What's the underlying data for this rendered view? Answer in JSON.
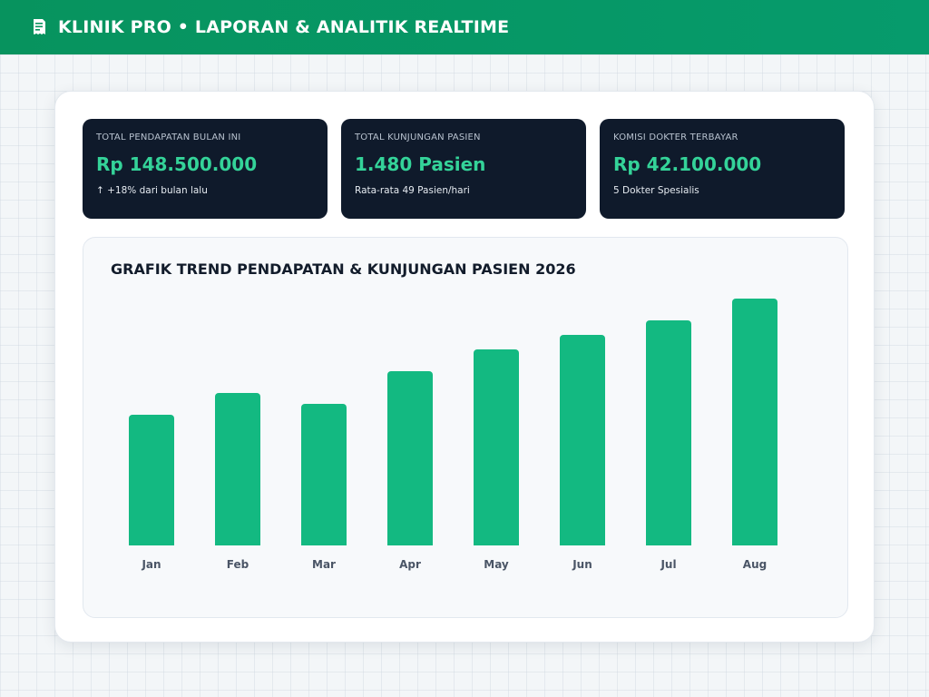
{
  "header": {
    "logo_icon": "receipt-icon",
    "title": "KLINIK PRO • LAPORAN & ANALITIK REALTIME"
  },
  "stats": [
    {
      "label": "TOTAL PENDAPATAN BULAN INI",
      "value": "Rp 148.500.000",
      "note": "↑ +18% dari bulan lalu"
    },
    {
      "label": "TOTAL KUNJUNGAN PASIEN",
      "value": "1.480 Pasien",
      "note": "Rata-rata 49 Pasien/hari"
    },
    {
      "label": "KOMISI DOKTER TERBAYAR",
      "value": "Rp 42.100.000",
      "note": "5 Dokter Spesialis"
    }
  ],
  "colors": {
    "accent": "#13b981",
    "header": "#07935e",
    "stat_bg": "#0f1a2b",
    "stat_value": "#34d399"
  },
  "chart_data": {
    "type": "bar",
    "title": "GRAFIK TREND PENDAPATAN & KUNJUNGAN PASIEN 2026",
    "categories": [
      "Jan",
      "Feb",
      "Mar",
      "Apr",
      "May",
      "Jun",
      "Jul",
      "Aug"
    ],
    "values": [
      144,
      168,
      156,
      192,
      216,
      232,
      248,
      272
    ],
    "ylim": [
      0,
      272
    ],
    "xlabel": "",
    "ylabel": "",
    "grid": false,
    "legend": "none"
  }
}
